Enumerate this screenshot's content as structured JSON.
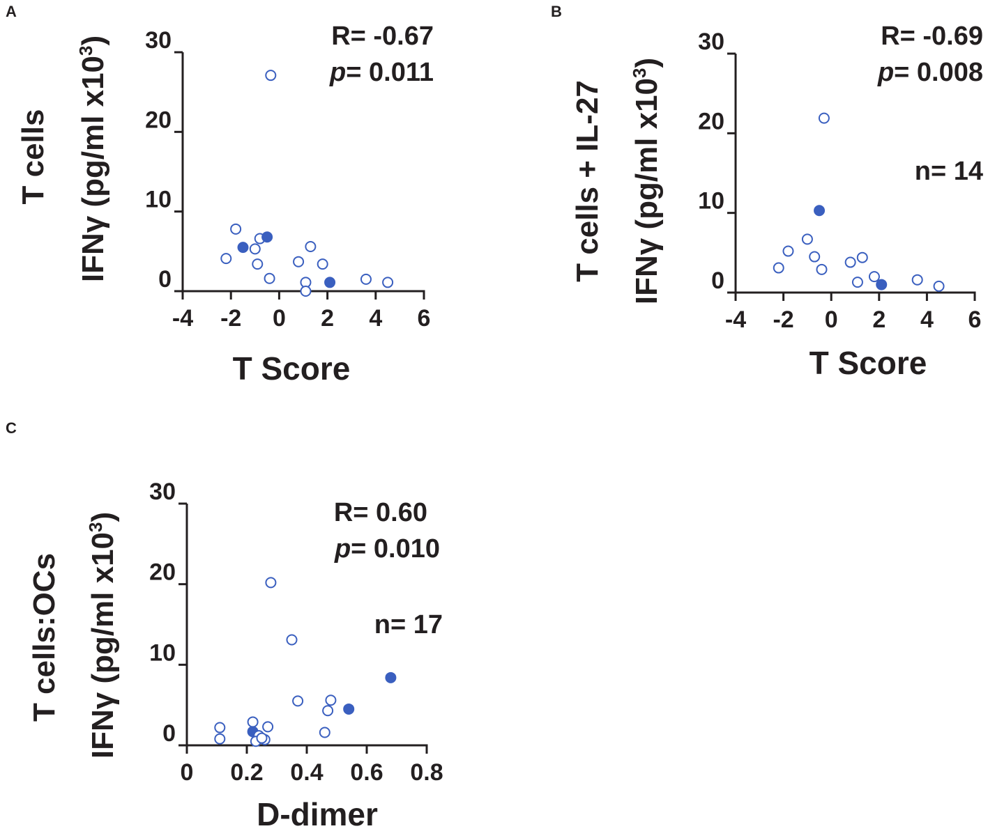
{
  "colors": {
    "point": "#3a5fbf",
    "axis": "#231f20",
    "text": "#231f20"
  },
  "chart_data": [
    {
      "panel": "A",
      "type": "scatter",
      "ylabel_line1": "T cells",
      "ylabel_line2_prefix": "IFNγ (pg/ml x10",
      "ylabel_sup": "3",
      "ylabel_suffix": ")",
      "xlabel": "T Score",
      "xlim": [
        -4,
        6
      ],
      "ylim": [
        0,
        30
      ],
      "xticks": [
        -4,
        -2,
        0,
        2,
        4,
        6
      ],
      "xtick_labels": [
        "-4",
        "-2",
        "0",
        "2",
        "4",
        "6"
      ],
      "yticks": [
        0,
        10,
        20,
        30
      ],
      "ytick_labels": [
        "0",
        "10",
        "20",
        "30"
      ],
      "stats": {
        "r": "R= -0.67",
        "p_label": "p",
        "p_value": "= 0.011",
        "n": ""
      },
      "points": [
        {
          "x": -0.35,
          "y": 27.1,
          "filled": false
        },
        {
          "x": -1.8,
          "y": 7.8,
          "filled": false
        },
        {
          "x": -1.5,
          "y": 5.5,
          "filled": true
        },
        {
          "x": -2.2,
          "y": 4.1,
          "filled": false
        },
        {
          "x": -1.0,
          "y": 5.3,
          "filled": false
        },
        {
          "x": -0.8,
          "y": 6.6,
          "filled": false
        },
        {
          "x": -0.5,
          "y": 6.8,
          "filled": true
        },
        {
          "x": -0.9,
          "y": 3.4,
          "filled": false
        },
        {
          "x": -0.4,
          "y": 1.6,
          "filled": false
        },
        {
          "x": 0.8,
          "y": 3.7,
          "filled": false
        },
        {
          "x": 1.3,
          "y": 5.6,
          "filled": false
        },
        {
          "x": 1.1,
          "y": 1.1,
          "filled": false
        },
        {
          "x": 1.1,
          "y": 0.0,
          "filled": false
        },
        {
          "x": 1.8,
          "y": 3.4,
          "filled": false
        },
        {
          "x": 2.1,
          "y": 1.1,
          "filled": true
        },
        {
          "x": 3.6,
          "y": 1.5,
          "filled": false
        },
        {
          "x": 4.5,
          "y": 1.1,
          "filled": false
        }
      ]
    },
    {
      "panel": "B",
      "type": "scatter",
      "ylabel_line1": "T cells + IL-27",
      "ylabel_line2_prefix": "IFNγ (pg/ml x10",
      "ylabel_sup": "3",
      "ylabel_suffix": ")",
      "xlabel": "T Score",
      "xlim": [
        -4,
        6
      ],
      "ylim": [
        0,
        30
      ],
      "xticks": [
        -4,
        -2,
        0,
        2,
        4,
        6
      ],
      "xtick_labels": [
        "-4",
        "-2",
        "0",
        "2",
        "4",
        "6"
      ],
      "yticks": [
        0,
        10,
        20,
        30
      ],
      "ytick_labels": [
        "0",
        "10",
        "20",
        "30"
      ],
      "stats": {
        "r": "R= -0.69",
        "p_label": "p",
        "p_value": "= 0.008",
        "n": "n= 14"
      },
      "points": [
        {
          "x": -0.3,
          "y": 21.9,
          "filled": false
        },
        {
          "x": -0.5,
          "y": 10.3,
          "filled": true
        },
        {
          "x": -1.0,
          "y": 6.7,
          "filled": false
        },
        {
          "x": -1.8,
          "y": 5.2,
          "filled": false
        },
        {
          "x": -0.7,
          "y": 4.5,
          "filled": false
        },
        {
          "x": -2.2,
          "y": 3.1,
          "filled": false
        },
        {
          "x": -0.4,
          "y": 2.9,
          "filled": false
        },
        {
          "x": 0.8,
          "y": 3.8,
          "filled": false
        },
        {
          "x": 1.3,
          "y": 4.4,
          "filled": false
        },
        {
          "x": 1.1,
          "y": 1.3,
          "filled": false
        },
        {
          "x": 1.8,
          "y": 2.0,
          "filled": false
        },
        {
          "x": 2.1,
          "y": 1.0,
          "filled": true
        },
        {
          "x": 3.6,
          "y": 1.6,
          "filled": false
        },
        {
          "x": 4.5,
          "y": 0.8,
          "filled": false
        }
      ]
    },
    {
      "panel": "C",
      "type": "scatter",
      "ylabel_line1": "T cells:OCs",
      "ylabel_line2_prefix": "IFNγ (pg/ml x10",
      "ylabel_sup": "3",
      "ylabel_suffix": ")",
      "xlabel": "D-dimer",
      "xlim": [
        0,
        0.8
      ],
      "ylim": [
        0,
        30
      ],
      "xticks": [
        0,
        0.2,
        0.4,
        0.6,
        0.8
      ],
      "xtick_labels": [
        "0",
        "0.2",
        "0.4",
        "0.6",
        "0.8"
      ],
      "yticks": [
        0,
        10,
        20,
        30
      ],
      "ytick_labels": [
        "0",
        "10",
        "20",
        "30"
      ],
      "stats": {
        "r": "R= 0.60",
        "p_label": "p",
        "p_value": "= 0.010",
        "n": "n= 17"
      },
      "points": [
        {
          "x": 0.28,
          "y": 20.2,
          "filled": false
        },
        {
          "x": 0.35,
          "y": 13.1,
          "filled": false
        },
        {
          "x": 0.68,
          "y": 8.4,
          "filled": true
        },
        {
          "x": 0.37,
          "y": 5.5,
          "filled": false
        },
        {
          "x": 0.48,
          "y": 5.6,
          "filled": false
        },
        {
          "x": 0.47,
          "y": 4.3,
          "filled": false
        },
        {
          "x": 0.54,
          "y": 4.5,
          "filled": true
        },
        {
          "x": 0.46,
          "y": 1.6,
          "filled": false
        },
        {
          "x": 0.11,
          "y": 2.2,
          "filled": false
        },
        {
          "x": 0.11,
          "y": 0.8,
          "filled": false
        },
        {
          "x": 0.22,
          "y": 2.9,
          "filled": false
        },
        {
          "x": 0.27,
          "y": 2.3,
          "filled": false
        },
        {
          "x": 0.22,
          "y": 1.7,
          "filled": true
        },
        {
          "x": 0.24,
          "y": 1.2,
          "filled": false
        },
        {
          "x": 0.26,
          "y": 0.7,
          "filled": false
        },
        {
          "x": 0.23,
          "y": 0.5,
          "filled": false
        },
        {
          "x": 0.25,
          "y": 0.9,
          "filled": false
        }
      ]
    }
  ]
}
